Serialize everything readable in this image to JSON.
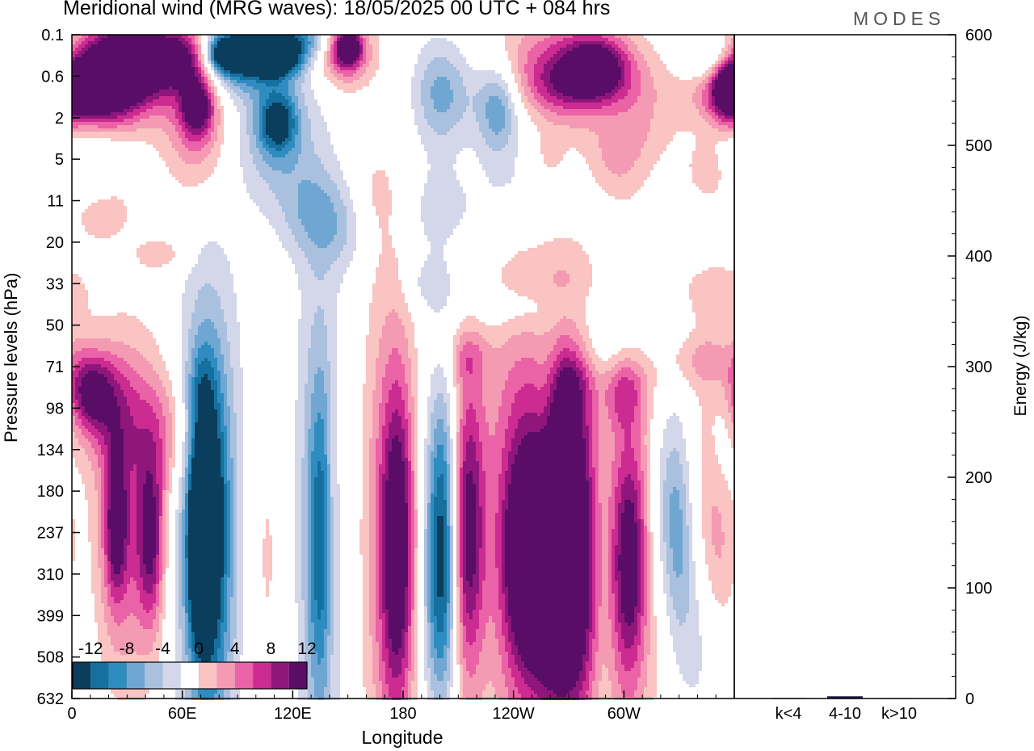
{
  "header": {
    "title": "Meridional wind (MRG waves):  18/05/2025  00 UTC  + 084 hrs",
    "logo": "MODES"
  },
  "chart_data": [
    {
      "type": "heatmap",
      "title": "Meridional wind (MRG waves):  18/05/2025  00 UTC  + 084 hrs",
      "xlabel": "Longitude",
      "ylabel": "Pressure levels (hPa)",
      "x_ticks": [
        "0",
        "60E",
        "120E",
        "180",
        "120W",
        "60W"
      ],
      "x_tick_values": [
        0,
        60,
        120,
        180,
        240,
        300
      ],
      "xlim": [
        0,
        360
      ],
      "y_ticks": [
        "0.1",
        "0.6",
        "2",
        "5",
        "11",
        "20",
        "33",
        "50",
        "71",
        "98",
        "134",
        "180",
        "237",
        "310",
        "399",
        "508",
        "632"
      ],
      "y_inverted": true,
      "colorbar": {
        "labels": [
          "-12",
          "-8",
          "-4",
          "0",
          "4",
          "8",
          "12"
        ],
        "levels": [
          -14,
          -12,
          -10,
          -8,
          -6,
          -4,
          -2,
          2,
          4,
          6,
          8,
          10,
          12,
          14
        ],
        "colors": [
          "#0b3d5c",
          "#15709f",
          "#2f8cc0",
          "#6fa7d2",
          "#a9c0de",
          "#d4d7ea",
          "#ffffff",
          "#f9c4c2",
          "#f59ab3",
          "#ea63a6",
          "#cc2b91",
          "#8f177c",
          "#5a0d66"
        ],
        "placement": "bottom-left"
      },
      "blobs": [
        {
          "lon": 245,
          "lev": 11.8,
          "rl": 16,
          "rv": 3.9,
          "v": 8
        },
        {
          "lon": 248,
          "lev": 12.5,
          "rl": 8,
          "rv": 1.5,
          "v": 12
        },
        {
          "lon": 213,
          "lev": 11.6,
          "rl": 17,
          "rv": 4.5,
          "v": 9
        },
        {
          "lon": 213,
          "lev": 12.0,
          "rl": 7,
          "rv": 2.4,
          "v": 13
        },
        {
          "lon": 265,
          "lev": 11.2,
          "rl": 12,
          "rv": 3.6,
          "v": 8
        },
        {
          "lon": 265,
          "lev": 11.2,
          "rl": 6,
          "rv": 1.8,
          "v": 12
        },
        {
          "lon": 275,
          "lev": 12.2,
          "rl": 10,
          "rv": 3.4,
          "v": 8
        },
        {
          "lon": 264,
          "lev": 14.0,
          "rl": 14,
          "rv": 1.8,
          "v": 6
        },
        {
          "lon": 174,
          "lev": 12.0,
          "rl": 12,
          "rv": 4.6,
          "v": 7
        },
        {
          "lon": 177,
          "lev": 12.4,
          "rl": 6,
          "rv": 2.6,
          "v": 11
        },
        {
          "lon": 303,
          "lev": 12.2,
          "rl": 12,
          "rv": 4.2,
          "v": 6
        },
        {
          "lon": 303,
          "lev": 12.8,
          "rl": 6,
          "rv": 1.8,
          "v": 9
        },
        {
          "lon": 40,
          "lev": 11.6,
          "rl": 10,
          "rv": 3.0,
          "v": 5
        },
        {
          "lon": 43,
          "lev": 12.2,
          "rl": 5,
          "rv": 1.4,
          "v": 9
        },
        {
          "lon": 24,
          "lev": 11.7,
          "rl": 9,
          "rv": 2.6,
          "v": 6
        },
        {
          "lon": 24,
          "lev": 11.8,
          "rl": 4,
          "rv": 1.2,
          "v": 9
        },
        {
          "lon": 52,
          "lev": 9.6,
          "rl": 12,
          "rv": 1.1,
          "v": 5
        },
        {
          "lon": 350,
          "lev": 11.8,
          "rl": 8,
          "rv": 1.7,
          "v": 6
        },
        {
          "lon": 104,
          "lev": 12.5,
          "rl": 10,
          "rv": 3.2,
          "v": 3
        },
        {
          "lon": 20,
          "lev": 9.0,
          "rl": 12,
          "rv": 1.0,
          "v": 6
        },
        {
          "lon": 10,
          "lev": 8.6,
          "rl": 8,
          "rv": 0.6,
          "v": 9
        },
        {
          "lon": 300,
          "lev": 8.6,
          "rl": 8,
          "rv": 0.6,
          "v": 5
        },
        {
          "lon": 340,
          "lev": 7.8,
          "rl": 18,
          "rv": 0.5,
          "v": 4
        },
        {
          "lon": 355,
          "lev": 8.4,
          "rl": 10,
          "rv": 1.2,
          "v": 4
        },
        {
          "lon": 215,
          "lev": 7.8,
          "rl": 8,
          "rv": 0.4,
          "v": 3
        },
        {
          "lon": 272,
          "lev": 8.3,
          "rl": 8,
          "rv": 0.6,
          "v": 3
        },
        {
          "lon": 142,
          "lev": 11.6,
          "rl": 3,
          "rv": 2.6,
          "v": 3
        },
        {
          "lon": 75,
          "lev": 12.0,
          "rl": 14,
          "rv": 4.3,
          "v": -8
        },
        {
          "lon": 73,
          "lev": 11.8,
          "rl": 7,
          "rv": 2.6,
          "v": -13
        },
        {
          "lon": 69,
          "lev": 12.3,
          "rl": 3,
          "rv": 1.2,
          "v": -16
        },
        {
          "lon": 202,
          "lev": 12.0,
          "rl": 14,
          "rv": 4.8,
          "v": -7
        },
        {
          "lon": 203,
          "lev": 11.0,
          "rl": 7,
          "rv": 2.0,
          "v": -12
        },
        {
          "lon": 202,
          "lev": 13.8,
          "rl": 7,
          "rv": 1.8,
          "v": -10
        },
        {
          "lon": 135,
          "lev": 11.6,
          "rl": 11,
          "rv": 5.2,
          "v": -5
        },
        {
          "lon": 135,
          "lev": 12.3,
          "rl": 5,
          "rv": 2.8,
          "v": -7
        },
        {
          "lon": 260,
          "lev": 9.0,
          "rl": 6,
          "rv": 1.2,
          "v": -5
        },
        {
          "lon": 323,
          "lev": 11.3,
          "rl": 7,
          "rv": 1.8,
          "v": -5
        },
        {
          "lon": 330,
          "lev": 12.3,
          "rl": 5,
          "rv": 1.8,
          "v": -4
        },
        {
          "lon": 354,
          "lev": 9.3,
          "rl": 6,
          "rv": 1.6,
          "v": -4
        },
        {
          "lon": 227,
          "lev": 12.0,
          "rl": 8,
          "rv": 4.0,
          "v": -4
        },
        {
          "lon": 288,
          "lev": 13.0,
          "rl": 5,
          "rv": 3.2,
          "v": -3
        },
        {
          "lon": 340,
          "lev": 14.0,
          "rl": 8,
          "rv": 2.0,
          "v": -3
        },
        {
          "lon": 290,
          "lev": 7.5,
          "rl": 30,
          "rv": 0.5,
          "v": -3
        },
        {
          "lon": 250,
          "lev": 6.6,
          "rl": 30,
          "rv": 0.4,
          "v": -3
        },
        {
          "lon": 255,
          "lev": 3.8,
          "rl": 20,
          "rv": 0.8,
          "v": -3
        },
        {
          "lon": 205,
          "lev": 4.3,
          "rl": 22,
          "rv": 0.9,
          "v": -3
        },
        {
          "lon": 150,
          "lev": 4.7,
          "rl": 15,
          "rv": 0.7,
          "v": -3
        },
        {
          "lon": 195,
          "lev": 6.0,
          "rl": 10,
          "rv": 0.4,
          "v": -3
        },
        {
          "lon": 70,
          "lev": 8.6,
          "rl": 5,
          "rv": 0.7,
          "v": -3
        },
        {
          "lon": 25,
          "lev": 0.9,
          "rl": 20,
          "rv": 0.8,
          "v": 13
        },
        {
          "lon": 8,
          "lev": 1.4,
          "rl": 18,
          "rv": 0.6,
          "v": 12
        },
        {
          "lon": 40,
          "lev": 0.5,
          "rl": 18,
          "rv": 0.55,
          "v": 11
        },
        {
          "lon": 62,
          "lev": 0.55,
          "rl": 10,
          "rv": 0.5,
          "v": 8
        },
        {
          "lon": 148,
          "lev": 0.4,
          "rl": 11,
          "rv": 0.6,
          "v": 9
        },
        {
          "lon": 150,
          "lev": 0.3,
          "rl": 5,
          "rv": 0.3,
          "v": 13
        },
        {
          "lon": 120,
          "lev": 0.1,
          "rl": 16,
          "rv": 0.35,
          "v": -9
        },
        {
          "lon": 88,
          "lev": 0.6,
          "rl": 20,
          "rv": 0.6,
          "v": -10
        },
        {
          "lon": 85,
          "lev": 0.45,
          "rl": 8,
          "rv": 0.3,
          "v": -15
        },
        {
          "lon": 110,
          "lev": 0.6,
          "rl": 10,
          "rv": 0.3,
          "v": -13
        },
        {
          "lon": 263,
          "lev": 0.8,
          "rl": 30,
          "rv": 0.9,
          "v": 8
        },
        {
          "lon": 285,
          "lev": 0.7,
          "rl": 12,
          "rv": 0.5,
          "v": 10
        },
        {
          "lon": 280,
          "lev": 1.2,
          "rl": 20,
          "rv": 0.5,
          "v": 7
        },
        {
          "lon": 68,
          "lev": 2.0,
          "rl": 13,
          "rv": 1.3,
          "v": 7
        },
        {
          "lon": 68,
          "lev": 1.7,
          "rl": 6,
          "rv": 0.5,
          "v": 11
        },
        {
          "lon": 290,
          "lev": 1.5,
          "rl": 13,
          "rv": 0.8,
          "v": -3
        },
        {
          "lon": 348,
          "lev": 0.6,
          "rl": 10,
          "rv": 0.4,
          "v": -6
        },
        {
          "lon": 357,
          "lev": 1.3,
          "rl": 6,
          "rv": 0.45,
          "v": 11
        },
        {
          "lon": 110,
          "lev": 2.4,
          "rl": 15,
          "rv": 1.1,
          "v": -6
        },
        {
          "lon": 112,
          "lev": 2.1,
          "rl": 7,
          "rv": 0.5,
          "v": -10
        },
        {
          "lon": 222,
          "lev": 1.3,
          "rl": 22,
          "rv": 0.9,
          "v": -4
        },
        {
          "lon": 232,
          "lev": 1.8,
          "rl": 8,
          "rv": 0.8,
          "v": -7
        },
        {
          "lon": 200,
          "lev": 1.4,
          "rl": 10,
          "rv": 0.9,
          "v": -5
        },
        {
          "lon": 300,
          "lev": 2.2,
          "rl": 20,
          "rv": 0.7,
          "v": 4
        },
        {
          "lon": 295,
          "lev": 3.2,
          "rl": 12,
          "rv": 0.6,
          "v": 3
        },
        {
          "lon": 130,
          "lev": 4.2,
          "rl": 14,
          "rv": 0.8,
          "v": -4
        },
        {
          "lon": 165,
          "lev": 4.2,
          "rl": 10,
          "rv": 0.9,
          "v": 3
        },
        {
          "lon": 15,
          "lev": 4.2,
          "rl": 15,
          "rv": 0.7,
          "v": 3
        },
        {
          "lon": 345,
          "lev": 3.3,
          "rl": 8,
          "rv": 0.5,
          "v": 3
        },
        {
          "lon": 10,
          "lev": 3.0,
          "rl": 10,
          "rv": 0.7,
          "v": -3
        },
        {
          "lon": 50,
          "lev": 5.3,
          "rl": 10,
          "rv": 0.3,
          "v": 3
        },
        {
          "lon": 350,
          "lev": 6.2,
          "rl": 15,
          "rv": 0.6,
          "v": 3
        },
        {
          "lon": 260,
          "lev": 3.0,
          "rl": 6,
          "rv": 0.4,
          "v": 3
        }
      ]
    },
    {
      "type": "bar",
      "ylabel": "Energy (J/kg)",
      "categories": [
        "k<4",
        "4-10",
        "k>10"
      ],
      "values": [
        0.5,
        2,
        0.4
      ],
      "ylim": [
        0,
        600
      ],
      "y_ticks": [
        "0",
        "100",
        "200",
        "300",
        "400",
        "500",
        "600"
      ]
    }
  ]
}
